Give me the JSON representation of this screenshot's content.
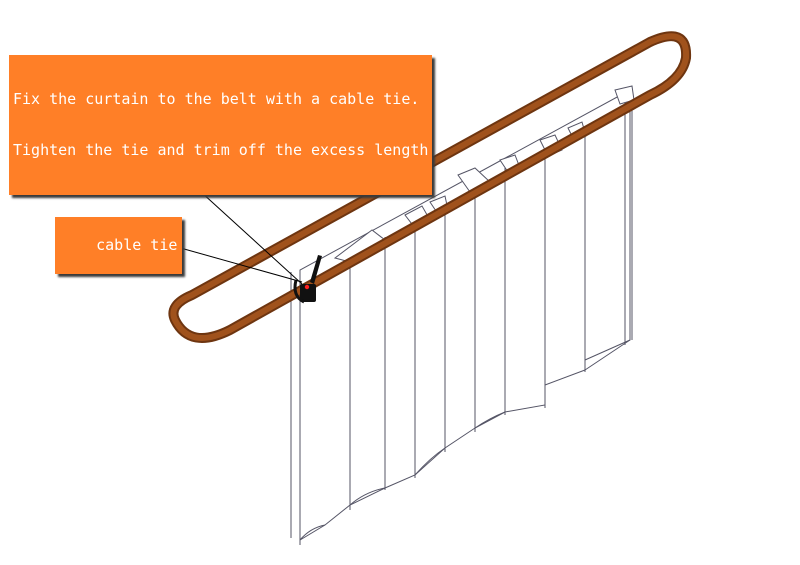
{
  "callouts": {
    "instruction_line1": "Fix the curtain to the belt with a cable tie.",
    "instruction_line2": "Tighten the tie and trim off the excess length",
    "cable_tie_label": "cable tie"
  },
  "colors": {
    "belt": "#a0521c",
    "belt_edge": "#6e3510",
    "callout_background": "#ff7f27",
    "callout_text": "#ffffff",
    "curtain_outline": "#555566",
    "leader_line": "#000000",
    "cable_tie": "#111111",
    "pin": "#ff2020"
  },
  "icons": {
    "belt": "oval-belt-loop",
    "curtain": "pleated-curtain",
    "fastener": "cable-tie"
  }
}
